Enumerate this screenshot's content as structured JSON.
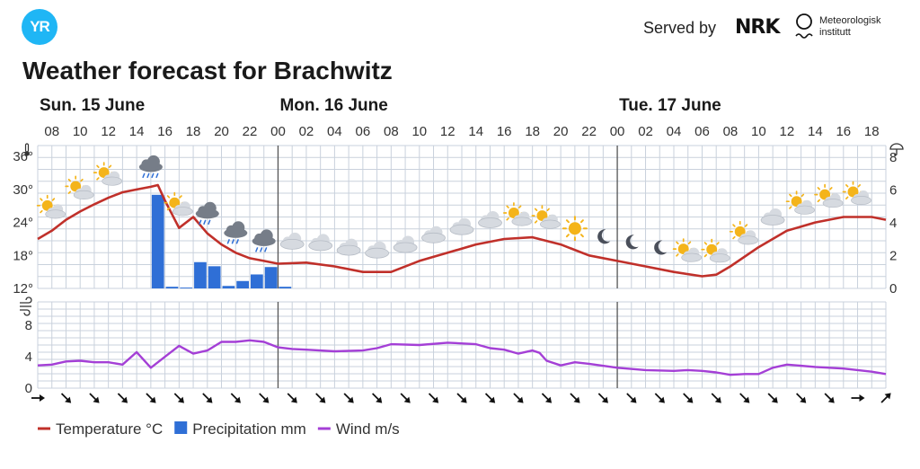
{
  "header": {
    "logo_text": "YR",
    "served_by": "Served by",
    "nrk_logo": "NRK",
    "met_line1": "Meteorologisk",
    "met_line2": "institutt",
    "title": "Weather forecast for Brachwitz"
  },
  "colors": {
    "temperature": "#c0302a",
    "precipitation": "#2f6fd6",
    "wind": "#a43fd6",
    "grid": "#c9d1dc",
    "brand": "#1fb6f5"
  },
  "chart_data": {
    "type": "line",
    "days": [
      {
        "label": "Sun. 15 June",
        "hour": 7
      },
      {
        "label": "Mon. 16 June",
        "hour": 24
      },
      {
        "label": "Tue. 17 June",
        "hour": 48
      }
    ],
    "day_boundaries": [
      24,
      48
    ],
    "hour_ticks": [
      {
        "h": 8,
        "label": "08"
      },
      {
        "h": 10,
        "label": "10"
      },
      {
        "h": 12,
        "label": "12"
      },
      {
        "h": 14,
        "label": "14"
      },
      {
        "h": 16,
        "label": "16"
      },
      {
        "h": 18,
        "label": "18"
      },
      {
        "h": 20,
        "label": "20"
      },
      {
        "h": 22,
        "label": "22"
      },
      {
        "h": 24,
        "label": "00"
      },
      {
        "h": 26,
        "label": "02"
      },
      {
        "h": 28,
        "label": "04"
      },
      {
        "h": 30,
        "label": "06"
      },
      {
        "h": 32,
        "label": "08"
      },
      {
        "h": 34,
        "label": "10"
      },
      {
        "h": 36,
        "label": "12"
      },
      {
        "h": 38,
        "label": "14"
      },
      {
        "h": 40,
        "label": "16"
      },
      {
        "h": 42,
        "label": "18"
      },
      {
        "h": 44,
        "label": "20"
      },
      {
        "h": 46,
        "label": "22"
      },
      {
        "h": 48,
        "label": "00"
      },
      {
        "h": 50,
        "label": "02"
      },
      {
        "h": 52,
        "label": "04"
      },
      {
        "h": 54,
        "label": "06"
      },
      {
        "h": 56,
        "label": "08"
      },
      {
        "h": 58,
        "label": "10"
      },
      {
        "h": 60,
        "label": "12"
      },
      {
        "h": 62,
        "label": "14"
      },
      {
        "h": 64,
        "label": "16"
      },
      {
        "h": 66,
        "label": "18"
      }
    ],
    "temp_axis": {
      "ticks": [
        12,
        18,
        24,
        30,
        36
      ],
      "tick_labels": [
        "12°",
        "18°",
        "24°",
        "30°",
        "36°"
      ],
      "ylim": [
        12,
        38
      ]
    },
    "precip_axis": {
      "ticks": [
        0,
        2,
        4,
        6,
        8
      ],
      "ylim": [
        0,
        8.7
      ]
    },
    "wind_axis": {
      "ticks": [
        0,
        4,
        8
      ],
      "ylim": [
        0,
        11
      ]
    },
    "series": [
      {
        "name": "Temperature °C",
        "type": "line",
        "x": [
          7,
          8,
          9,
          10,
          11,
          12,
          13,
          14,
          15,
          15.5,
          16,
          17,
          18,
          19,
          20,
          21,
          22,
          23,
          24,
          26,
          28,
          30,
          32,
          34,
          36,
          38,
          40,
          42,
          44,
          46,
          48,
          50,
          52,
          54,
          55,
          56,
          58,
          60,
          62,
          64,
          66,
          67
        ],
        "values": [
          21,
          22.5,
          24.5,
          26,
          27.3,
          28.5,
          29.5,
          30,
          30.5,
          30.8,
          28,
          23,
          25,
          22,
          20,
          18.5,
          17.5,
          17,
          16.5,
          16.7,
          16,
          15,
          15,
          17,
          18.5,
          20,
          21,
          21.3,
          20,
          18,
          17,
          16,
          15,
          14.2,
          14.5,
          16,
          19.5,
          22.5,
          24,
          25,
          25,
          24.5
        ]
      },
      {
        "name": "Precipitation mm",
        "type": "bar",
        "bars": [
          {
            "h": 15,
            "v": 5.7
          },
          {
            "h": 16,
            "v": 0.1
          },
          {
            "h": 17,
            "v": 0.05
          },
          {
            "h": 18,
            "v": 1.6
          },
          {
            "h": 19,
            "v": 1.35
          },
          {
            "h": 20,
            "v": 0.15
          },
          {
            "h": 21,
            "v": 0.45
          },
          {
            "h": 22,
            "v": 0.85
          },
          {
            "h": 23,
            "v": 1.3
          },
          {
            "h": 24,
            "v": 0.1
          }
        ]
      },
      {
        "name": "Wind m/s",
        "type": "line",
        "x": [
          7,
          8,
          9,
          10,
          11,
          12,
          13,
          14,
          15,
          16,
          17,
          18,
          19,
          20,
          21,
          22,
          23,
          24,
          25,
          26,
          28,
          30,
          31,
          32,
          34,
          36,
          38,
          39,
          40,
          41,
          42,
          42.5,
          43,
          44,
          45,
          46,
          48,
          50,
          52,
          53,
          54,
          55,
          56,
          57,
          58,
          59,
          60,
          62,
          64,
          66,
          67
        ],
        "values": [
          2.9,
          3.0,
          3.4,
          3.5,
          3.3,
          3.3,
          3.0,
          4.6,
          2.6,
          4.0,
          5.4,
          4.4,
          4.8,
          5.9,
          5.9,
          6.1,
          5.9,
          5.2,
          5.0,
          4.9,
          4.7,
          4.8,
          5.1,
          5.6,
          5.5,
          5.8,
          5.6,
          5.1,
          4.9,
          4.4,
          4.8,
          4.5,
          3.5,
          2.9,
          3.3,
          3.1,
          2.6,
          2.3,
          2.2,
          2.3,
          2.2,
          2.0,
          1.7,
          1.8,
          1.8,
          2.6,
          3.0,
          2.7,
          2.5,
          2.1,
          1.8
        ]
      }
    ],
    "weather_icons": [
      {
        "h": 8,
        "icon": "partly-cloudy-day-icon"
      },
      {
        "h": 10,
        "icon": "partly-cloudy-day-icon"
      },
      {
        "h": 12,
        "icon": "partly-cloudy-day-icon"
      },
      {
        "h": 15,
        "icon": "heavy-rain-cloud-icon"
      },
      {
        "h": 17,
        "icon": "partly-cloudy-day-icon"
      },
      {
        "h": 19,
        "icon": "rain-cloud-icon"
      },
      {
        "h": 21,
        "icon": "rain-cloud-icon"
      },
      {
        "h": 23,
        "icon": "rain-cloud-icon"
      },
      {
        "h": 25,
        "icon": "cloud-icon"
      },
      {
        "h": 27,
        "icon": "cloud-icon"
      },
      {
        "h": 29,
        "icon": "cloud-icon"
      },
      {
        "h": 31,
        "icon": "cloud-icon"
      },
      {
        "h": 33,
        "icon": "cloud-icon"
      },
      {
        "h": 35,
        "icon": "cloud-icon"
      },
      {
        "h": 37,
        "icon": "cloud-icon"
      },
      {
        "h": 39,
        "icon": "cloud-icon"
      },
      {
        "h": 41,
        "icon": "partly-cloudy-day-icon"
      },
      {
        "h": 43,
        "icon": "partly-cloudy-day-icon"
      },
      {
        "h": 45,
        "icon": "sun-icon"
      },
      {
        "h": 47,
        "icon": "moon-icon"
      },
      {
        "h": 49,
        "icon": "moon-icon"
      },
      {
        "h": 51,
        "icon": "moon-icon"
      },
      {
        "h": 53,
        "icon": "partly-cloudy-day-icon"
      },
      {
        "h": 55,
        "icon": "partly-cloudy-day-icon"
      },
      {
        "h": 57,
        "icon": "partly-cloudy-day-icon"
      },
      {
        "h": 59,
        "icon": "cloud-icon"
      },
      {
        "h": 61,
        "icon": "partly-cloudy-day-icon"
      },
      {
        "h": 63,
        "icon": "partly-cloudy-day-icon"
      },
      {
        "h": 65,
        "icon": "partly-cloudy-day-icon"
      }
    ],
    "wind_arrows": [
      {
        "h": 7,
        "dir": "right"
      },
      {
        "h": 9,
        "dir": "down-right"
      },
      {
        "h": 11,
        "dir": "down-right"
      },
      {
        "h": 13,
        "dir": "down-right"
      },
      {
        "h": 15,
        "dir": "down-right"
      },
      {
        "h": 17,
        "dir": "down-right"
      },
      {
        "h": 19,
        "dir": "down-right"
      },
      {
        "h": 21,
        "dir": "down-right"
      },
      {
        "h": 23,
        "dir": "down-right"
      },
      {
        "h": 25,
        "dir": "down-right"
      },
      {
        "h": 27,
        "dir": "down-right"
      },
      {
        "h": 29,
        "dir": "down-right"
      },
      {
        "h": 31,
        "dir": "down-right"
      },
      {
        "h": 33,
        "dir": "down-right"
      },
      {
        "h": 35,
        "dir": "down-right"
      },
      {
        "h": 37,
        "dir": "down-right"
      },
      {
        "h": 39,
        "dir": "down-right"
      },
      {
        "h": 41,
        "dir": "down-right"
      },
      {
        "h": 43,
        "dir": "down-right"
      },
      {
        "h": 45,
        "dir": "down-right"
      },
      {
        "h": 47,
        "dir": "down-right"
      },
      {
        "h": 49,
        "dir": "down-right"
      },
      {
        "h": 51,
        "dir": "down-right"
      },
      {
        "h": 53,
        "dir": "down-right"
      },
      {
        "h": 55,
        "dir": "down-right"
      },
      {
        "h": 57,
        "dir": "down-right"
      },
      {
        "h": 59,
        "dir": "down-right"
      },
      {
        "h": 61,
        "dir": "down-right"
      },
      {
        "h": 63,
        "dir": "down-right"
      },
      {
        "h": 65,
        "dir": "right"
      },
      {
        "h": 67,
        "dir": "up-right"
      }
    ],
    "legend": [
      {
        "label": "Temperature °C",
        "kind": "line",
        "color": "#c0302a"
      },
      {
        "label": "Precipitation mm",
        "kind": "box",
        "color": "#2f6fd6"
      },
      {
        "label": "Wind m/s",
        "kind": "line",
        "color": "#a43fd6"
      }
    ],
    "grid": true,
    "legend_position": "bottom-left"
  }
}
